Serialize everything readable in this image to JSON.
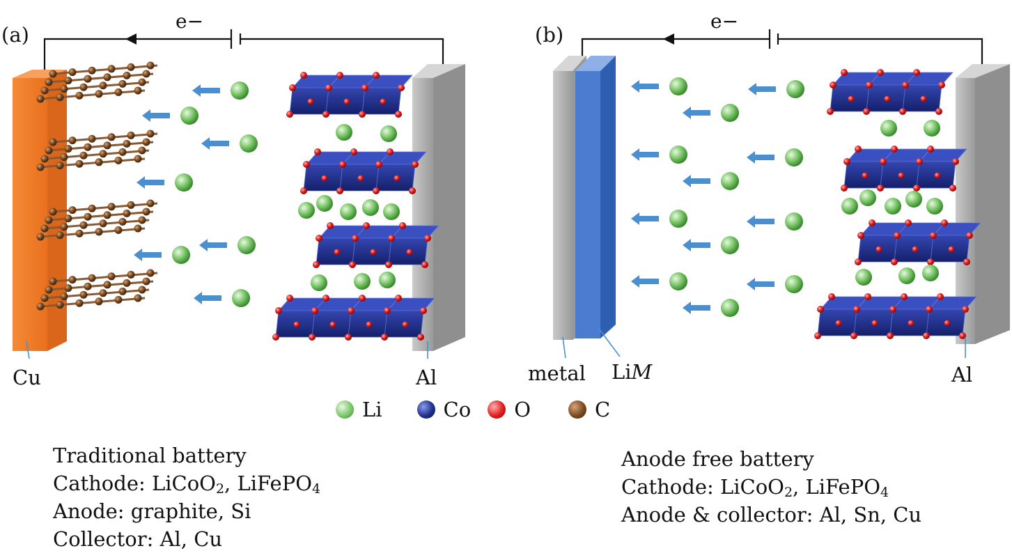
{
  "panels": [
    {
      "tag": "(a)",
      "electron": "e−",
      "left_collector": "Cu",
      "right_collector": "Al",
      "caption": {
        "title": "Traditional battery",
        "cathode_label": "Cathode: ",
        "cathode_a": "LiCoO",
        "cathode_a_sub": "2",
        "cathode_sep": ", ",
        "cathode_b": "LiFePO",
        "cathode_b_sub": "4",
        "anode": "Anode: graphite, Si",
        "collector": "Collector: Al, Cu"
      }
    },
    {
      "tag": "(b)",
      "electron": "e−",
      "left_collector": "metal",
      "lim_prefix": "Li",
      "lim_italic": "M",
      "right_collector": "Al",
      "caption": {
        "title": "Anode free battery",
        "cathode_label": "Cathode: ",
        "cathode_a": "LiCoO",
        "cathode_a_sub": "2",
        "cathode_sep": ", ",
        "cathode_b": "LiFePO",
        "cathode_b_sub": "4",
        "anode": "Anode & collector: Al, Sn, Cu"
      }
    }
  ],
  "legend": [
    {
      "label": "Li",
      "color": "#7cc86a"
    },
    {
      "label": "Co",
      "color": "#1f2f8c"
    },
    {
      "label": "O",
      "color": "#d81c1c"
    },
    {
      "label": "C",
      "color": "#7a4a22"
    }
  ],
  "colors": {
    "copper": "#f07f2a",
    "aluminum": "#a9a9a9",
    "lim_layer": "#3f6fc4",
    "arrow": "#4a90d0",
    "octahedron": "#22318f"
  }
}
